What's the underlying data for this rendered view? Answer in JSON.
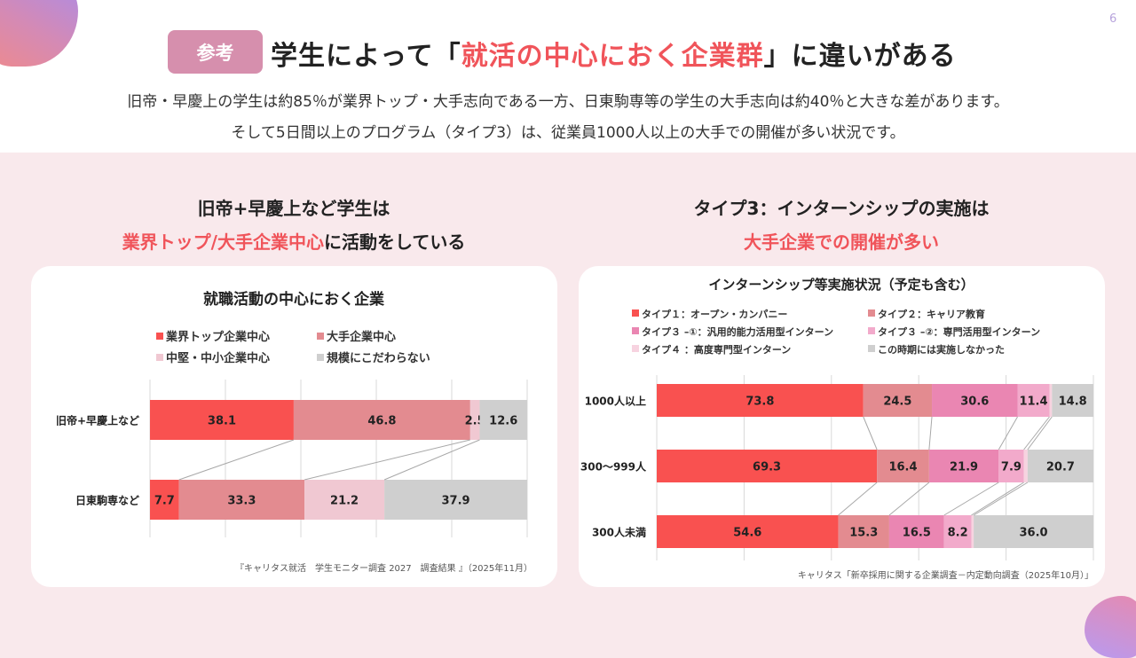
{
  "page_number": "6",
  "badge": "参考",
  "title": {
    "pre": "学生によって「",
    "highlight": "就活の中心におく企業群",
    "post": "」に違いがある"
  },
  "subtitle": [
    "旧帝・早慶上の学生は約85％が業界トップ・大手志向である一方、日東駒専等の学生の大手志向は約40％と大きな差があります。",
    "そして5日間以上のプログラム（タイプ3）は、従業員1000人以上の大手での開催が多い状況です。"
  ],
  "left": {
    "heading1": "旧帝+早慶上など学生は",
    "heading2_highlight": "業界トップ/大手企業中心",
    "heading2_post": "に活動をしている"
  },
  "right": {
    "heading1": "タイプ3：インターンシップの実施は",
    "heading2_highlight": "大手企業での開催が多い"
  },
  "colors": {
    "accent": "#f0545a",
    "badge": "#d68fad"
  },
  "chart_data": [
    {
      "type": "bar",
      "orientation": "horizontal",
      "stacked": "100%",
      "title": "就職活動の中心におく企業",
      "categories": [
        "旧帝+早慶上など",
        "日東駒専など"
      ],
      "series": [
        {
          "name": "業界トップ企業中心",
          "color": "#f95150",
          "values": [
            38.1,
            7.7
          ]
        },
        {
          "name": "大手企業中心",
          "color": "#e38b90",
          "values": [
            46.8,
            33.3
          ]
        },
        {
          "name": "中堅・中小企業中心",
          "color": "#f0c8d2",
          "values": [
            2.5,
            21.2
          ]
        },
        {
          "name": "規模にこだわらない",
          "color": "#cfcfcf",
          "values": [
            12.6,
            37.9
          ]
        }
      ],
      "legend": "top",
      "grid": true,
      "source": "『キャリタス就活　学生モニター調査 2027　調査結果 』（2025年11月）"
    },
    {
      "type": "bar",
      "orientation": "horizontal",
      "stacked": "100%",
      "title": "インターンシップ等実施状況（予定も含む）",
      "categories": [
        "1000人以上",
        "300～999人",
        "300人未満"
      ],
      "series": [
        {
          "name": "タイプ１：オープン・カンパニー",
          "color": "#f95150",
          "values": [
            73.8,
            69.3,
            54.6
          ]
        },
        {
          "name": "タイプ２：キャリア教育",
          "color": "#e38b90",
          "values": [
            24.5,
            16.4,
            15.3
          ]
        },
        {
          "name": "タイプ３ –①：汎用的能力活用型インターン",
          "color": "#ea86b2",
          "values": [
            30.6,
            21.9,
            16.5
          ]
        },
        {
          "name": "タイプ３ –②：専門活用型インターン",
          "color": "#f2aacb",
          "values": [
            11.4,
            7.9,
            8.2
          ]
        },
        {
          "name": "タイプ４ ：高度専門型インターン",
          "color": "#f7d3e0",
          "values": [
            0.9,
            1.2,
            0.7
          ],
          "labels_shown": false
        },
        {
          "name": "この時期には実施しなかった",
          "color": "#cfcfcf",
          "values": [
            14.8,
            20.7,
            36.0
          ]
        }
      ],
      "legend": "top",
      "grid": true,
      "source": "キャリタス「新卒採用に関する企業調査－内定動向調査（2025年10月）」"
    }
  ]
}
